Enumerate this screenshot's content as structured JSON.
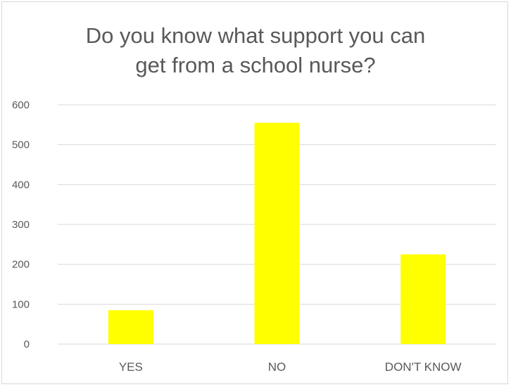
{
  "chart_data": {
    "type": "bar",
    "title_lines": [
      "Do you know what support you can",
      "get from a school nurse?"
    ],
    "categories": [
      "YES",
      "NO",
      "DON'T KNOW"
    ],
    "values": [
      85,
      555,
      225
    ],
    "ylim": [
      0,
      600
    ],
    "yticks": [
      "0",
      "100",
      "200",
      "300",
      "400",
      "500",
      "600"
    ],
    "xlabel": "",
    "ylabel": "",
    "grid": true,
    "bar_color": "#ffff00",
    "grid_color": "#d9d9d9"
  }
}
